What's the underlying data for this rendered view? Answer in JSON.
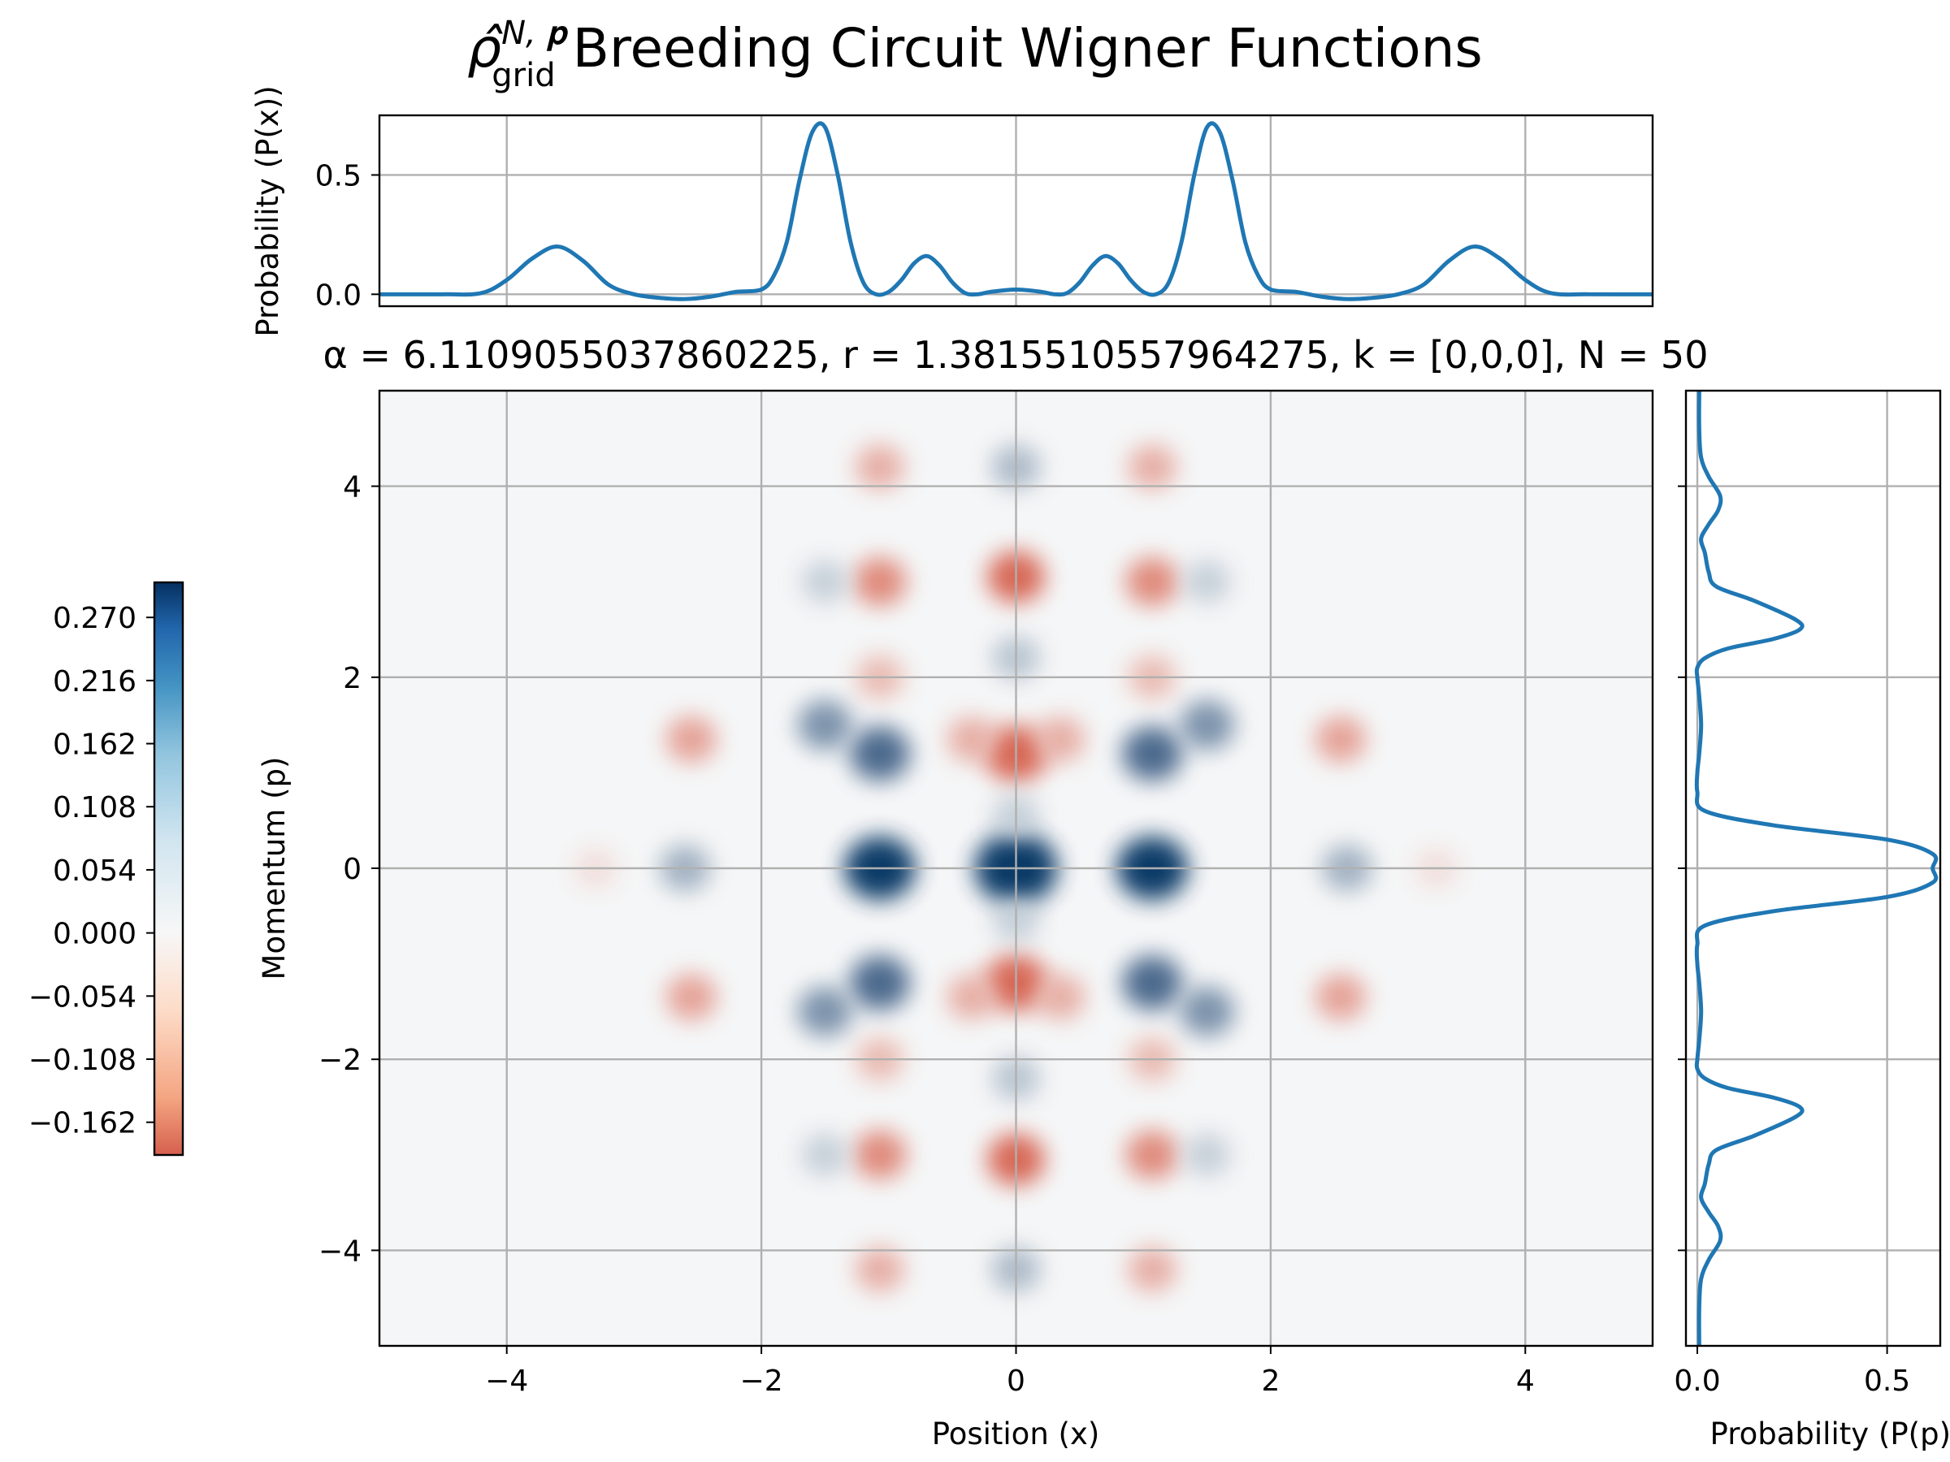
{
  "chart_data": [
    {
      "type": "heatmap",
      "panel": "wigner",
      "title_math": "ρ̂",
      "title_sup": "N, 𝐩",
      "title_sub": "grid",
      "title_rest": " Breeding Circuit Wigner Functions",
      "subtitle": "α = 6.1109055037860225, r = 1.3815510557964275, k = [0,0,0], N = 50",
      "xlabel": "Position (x)",
      "ylabel": "Momentum (p)",
      "xlim": [
        -5,
        5
      ],
      "ylim": [
        -5,
        5
      ],
      "xticks": [
        -4,
        -2,
        0,
        2,
        4
      ],
      "yticks": [
        -4,
        -2,
        0,
        2,
        4
      ],
      "xtick_labels": [
        "−4",
        "−2",
        "0",
        "2",
        "4"
      ],
      "ytick_labels": [
        "−4",
        "−2",
        "0",
        "2",
        "4"
      ],
      "grid": true,
      "colormap": "RdBu",
      "vmin": -0.19,
      "vmax": 0.3,
      "peaks": [
        {
          "x": 0,
          "p": 0,
          "w": 0.3
        },
        {
          "x": -1.07,
          "p": 0,
          "w": 0.22
        },
        {
          "x": 1.07,
          "p": 0,
          "w": 0.22
        },
        {
          "x": -2.6,
          "p": 0,
          "w": 0.07
        },
        {
          "x": 2.6,
          "p": 0,
          "w": 0.07
        },
        {
          "x": 0,
          "p": 1.2,
          "w": -0.16
        },
        {
          "x": 0,
          "p": -1.2,
          "w": -0.16
        },
        {
          "x": -0.35,
          "p": 1.35,
          "w": -0.06
        },
        {
          "x": 0.35,
          "p": 1.35,
          "w": -0.06
        },
        {
          "x": -0.35,
          "p": -1.35,
          "w": -0.06
        },
        {
          "x": 0.35,
          "p": -1.35,
          "w": -0.06
        },
        {
          "x": -1.07,
          "p": 1.2,
          "w": 0.14
        },
        {
          "x": 1.07,
          "p": 1.2,
          "w": 0.14
        },
        {
          "x": -1.07,
          "p": -1.2,
          "w": 0.14
        },
        {
          "x": 1.07,
          "p": -1.2,
          "w": 0.14
        },
        {
          "x": -1.5,
          "p": 1.5,
          "w": 0.1
        },
        {
          "x": 1.5,
          "p": 1.5,
          "w": 0.1
        },
        {
          "x": -1.5,
          "p": -1.5,
          "w": 0.1
        },
        {
          "x": 1.5,
          "p": -1.5,
          "w": 0.1
        },
        {
          "x": -2.55,
          "p": 1.35,
          "w": -0.07
        },
        {
          "x": 2.55,
          "p": 1.35,
          "w": -0.07
        },
        {
          "x": -2.55,
          "p": -1.35,
          "w": -0.07
        },
        {
          "x": 2.55,
          "p": -1.35,
          "w": -0.07
        },
        {
          "x": 0,
          "p": 3.05,
          "w": -0.12
        },
        {
          "x": 0,
          "p": -3.05,
          "w": -0.12
        },
        {
          "x": -1.07,
          "p": 3.0,
          "w": -0.09
        },
        {
          "x": 1.07,
          "p": 3.0,
          "w": -0.09
        },
        {
          "x": -1.07,
          "p": -3.0,
          "w": -0.09
        },
        {
          "x": 1.07,
          "p": -3.0,
          "w": -0.09
        },
        {
          "x": 0,
          "p": 4.2,
          "w": 0.06
        },
        {
          "x": 0,
          "p": -4.2,
          "w": 0.06
        },
        {
          "x": -1.07,
          "p": 4.2,
          "w": -0.06
        },
        {
          "x": 1.07,
          "p": 4.2,
          "w": -0.06
        },
        {
          "x": -1.07,
          "p": -4.2,
          "w": -0.06
        },
        {
          "x": 1.07,
          "p": -4.2,
          "w": -0.06
        },
        {
          "x": 0,
          "p": 2.2,
          "w": 0.05
        },
        {
          "x": 0,
          "p": -2.2,
          "w": 0.05
        },
        {
          "x": -1.07,
          "p": 2.0,
          "w": -0.05
        },
        {
          "x": 1.07,
          "p": 2.0,
          "w": -0.05
        },
        {
          "x": -1.07,
          "p": -2.0,
          "w": -0.05
        },
        {
          "x": 1.07,
          "p": -2.0,
          "w": -0.05
        },
        {
          "x": -1.5,
          "p": 3.0,
          "w": 0.04
        },
        {
          "x": 1.5,
          "p": 3.0,
          "w": 0.04
        },
        {
          "x": -1.5,
          "p": -3.0,
          "w": 0.04
        },
        {
          "x": 1.5,
          "p": -3.0,
          "w": 0.04
        },
        {
          "x": 0,
          "p": 0.55,
          "w": 0.04
        },
        {
          "x": 0,
          "p": -0.55,
          "w": 0.04
        },
        {
          "x": -3.3,
          "p": 0,
          "w": -0.02
        },
        {
          "x": 3.3,
          "p": 0,
          "w": -0.02
        }
      ]
    },
    {
      "type": "line",
      "panel": "marginal-x",
      "ylabel": "Probability (P(x))",
      "xlim": [
        -5,
        5
      ],
      "ylim": [
        -0.05,
        0.75
      ],
      "yticks": [
        0.0,
        0.5
      ],
      "ytick_labels": [
        "0.0",
        "0.5"
      ],
      "grid": true,
      "color": "#1f77b4",
      "x": [
        -5.0,
        -4.5,
        -4.2,
        -4.0,
        -3.8,
        -3.6,
        -3.4,
        -3.2,
        -3.0,
        -2.8,
        -2.6,
        -2.4,
        -2.2,
        -2.0,
        -1.9,
        -1.8,
        -1.7,
        -1.6,
        -1.5,
        -1.4,
        -1.3,
        -1.2,
        -1.1,
        -1.0,
        -0.9,
        -0.8,
        -0.7,
        -0.6,
        -0.5,
        -0.4,
        -0.3,
        -0.2,
        0.0,
        0.2,
        0.3,
        0.4,
        0.5,
        0.6,
        0.7,
        0.8,
        0.9,
        1.0,
        1.1,
        1.2,
        1.3,
        1.4,
        1.5,
        1.6,
        1.7,
        1.8,
        1.9,
        2.0,
        2.2,
        2.4,
        2.6,
        2.8,
        3.0,
        3.2,
        3.4,
        3.6,
        3.8,
        4.0,
        4.2,
        4.5,
        5.0
      ],
      "y": [
        0.0,
        0.0,
        0.005,
        0.06,
        0.15,
        0.2,
        0.14,
        0.04,
        0.0,
        -0.015,
        -0.02,
        -0.01,
        0.01,
        0.02,
        0.08,
        0.22,
        0.48,
        0.68,
        0.7,
        0.5,
        0.22,
        0.05,
        0.0,
        0.01,
        0.06,
        0.13,
        0.16,
        0.12,
        0.05,
        0.005,
        0.0,
        0.01,
        0.02,
        0.01,
        0.0,
        0.005,
        0.05,
        0.12,
        0.16,
        0.13,
        0.06,
        0.01,
        0.0,
        0.05,
        0.22,
        0.5,
        0.7,
        0.68,
        0.48,
        0.22,
        0.08,
        0.02,
        0.01,
        -0.01,
        -0.02,
        -0.015,
        0.0,
        0.04,
        0.14,
        0.2,
        0.15,
        0.06,
        0.005,
        0.0,
        0.0
      ]
    },
    {
      "type": "line",
      "panel": "marginal-p",
      "xlabel": "Probability (P(p))",
      "xlim": [
        -0.03,
        0.64
      ],
      "ylim": [
        -5,
        5
      ],
      "xticks": [
        0.0,
        0.5
      ],
      "xtick_labels": [
        "0.0",
        "0.5"
      ],
      "grid": true,
      "orientation": "vertical",
      "color": "#1f77b4",
      "p": [
        -5.0,
        -4.6,
        -4.3,
        -4.1,
        -3.9,
        -3.75,
        -3.6,
        -3.45,
        -3.3,
        -3.1,
        -2.95,
        -2.8,
        -2.6,
        -2.5,
        -2.4,
        -2.3,
        -2.2,
        -2.1,
        -2.0,
        -1.8,
        -1.5,
        -1.2,
        -1.0,
        -0.8,
        -0.6,
        -0.45,
        -0.3,
        -0.15,
        0.0,
        0.15,
        0.3,
        0.45,
        0.6,
        0.8,
        1.0,
        1.2,
        1.5,
        1.8,
        2.0,
        2.1,
        2.2,
        2.3,
        2.4,
        2.5,
        2.6,
        2.8,
        2.95,
        3.1,
        3.3,
        3.45,
        3.6,
        3.75,
        3.9,
        4.1,
        4.3,
        4.6,
        5.0
      ],
      "prob": [
        0.005,
        0.005,
        0.01,
        0.03,
        0.06,
        0.055,
        0.03,
        0.01,
        0.02,
        0.03,
        0.05,
        0.15,
        0.26,
        0.27,
        0.2,
        0.08,
        0.02,
        0.0,
        0.0,
        0.005,
        0.01,
        0.005,
        0.0,
        0.0,
        0.02,
        0.2,
        0.5,
        0.62,
        0.62,
        0.62,
        0.5,
        0.2,
        0.02,
        0.0,
        0.0,
        0.005,
        0.01,
        0.005,
        0.0,
        0.0,
        0.02,
        0.08,
        0.2,
        0.27,
        0.26,
        0.15,
        0.05,
        0.03,
        0.02,
        0.01,
        0.03,
        0.055,
        0.06,
        0.03,
        0.01,
        0.005,
        0.005
      ]
    },
    {
      "type": "colorbar",
      "panel": "colorbar",
      "vmin": -0.19,
      "vmax": 0.3,
      "ticks": [
        0.27,
        0.216,
        0.162,
        0.108,
        0.054,
        0.0,
        -0.054,
        -0.108,
        -0.162
      ],
      "tick_labels": [
        "0.270",
        "0.216",
        "0.162",
        "0.108",
        "0.054",
        "0.000",
        "−0.054",
        "−0.108",
        "−0.162"
      ],
      "colormap": "RdBu"
    }
  ]
}
